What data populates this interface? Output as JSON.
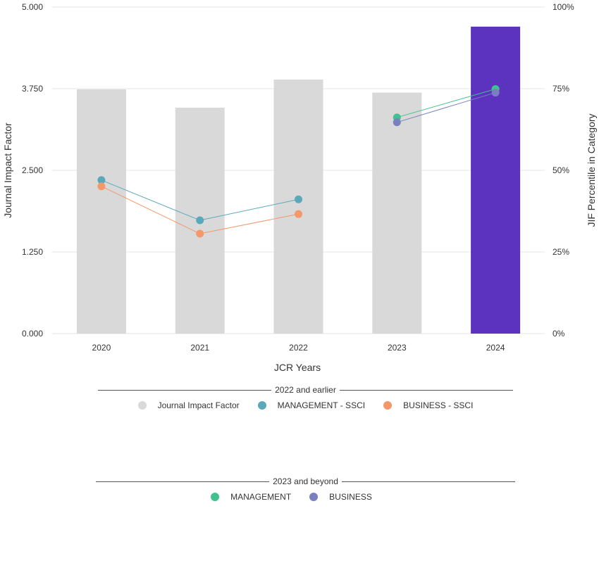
{
  "chart_data": {
    "type": "bar",
    "xlabel": "JCR Years",
    "ylabel": "Journal Impact Factor",
    "y2label": "JIF Percentile in Category",
    "categories": [
      "2020",
      "2021",
      "2022",
      "2023",
      "2024"
    ],
    "ylim": [
      0,
      5
    ],
    "y2lim": [
      0,
      100
    ],
    "yticks": [
      "0.000",
      "1.250",
      "2.500",
      "3.750",
      "5.000"
    ],
    "y2ticks": [
      "0%",
      "25%",
      "50%",
      "75%",
      "100%"
    ],
    "grid": true,
    "bars": {
      "name": "Journal Impact Factor",
      "values": [
        3.74,
        3.46,
        3.89,
        3.69,
        4.7
      ],
      "colors": [
        "#d9d9d9",
        "#d9d9d9",
        "#d9d9d9",
        "#d9d9d9",
        "#5c33be"
      ]
    },
    "series": [
      {
        "name": "MANAGEMENT - SSCI",
        "axis": "right",
        "color": "#5aa9bb",
        "points": [
          [
            "2020",
            47.0
          ],
          [
            "2021",
            34.7
          ],
          [
            "2022",
            41.1
          ]
        ]
      },
      {
        "name": "BUSINESS - SSCI",
        "axis": "right",
        "color": "#f3986b",
        "points": [
          [
            "2020",
            45.1
          ],
          [
            "2021",
            30.6
          ],
          [
            "2022",
            36.6
          ]
        ]
      },
      {
        "name": "MANAGEMENT",
        "axis": "right",
        "color": "#40c28e",
        "points": [
          [
            "2023",
            66.2
          ],
          [
            "2024",
            74.9
          ]
        ]
      },
      {
        "name": "BUSINESS",
        "axis": "right",
        "color": "#7a80bf",
        "points": [
          [
            "2023",
            64.7
          ],
          [
            "2024",
            73.8
          ]
        ]
      }
    ]
  },
  "legend": {
    "group1": {
      "title": "2022 and earlier",
      "items": [
        {
          "label": "Journal Impact Factor",
          "color": "#d9d9d9"
        },
        {
          "label": "MANAGEMENT - SSCI",
          "color": "#5aa9bb"
        },
        {
          "label": "BUSINESS - SSCI",
          "color": "#f3986b"
        }
      ]
    },
    "group2": {
      "title": "2023 and beyond",
      "items": [
        {
          "label": "MANAGEMENT",
          "color": "#40c28e"
        },
        {
          "label": "BUSINESS",
          "color": "#7a80bf"
        }
      ]
    }
  }
}
